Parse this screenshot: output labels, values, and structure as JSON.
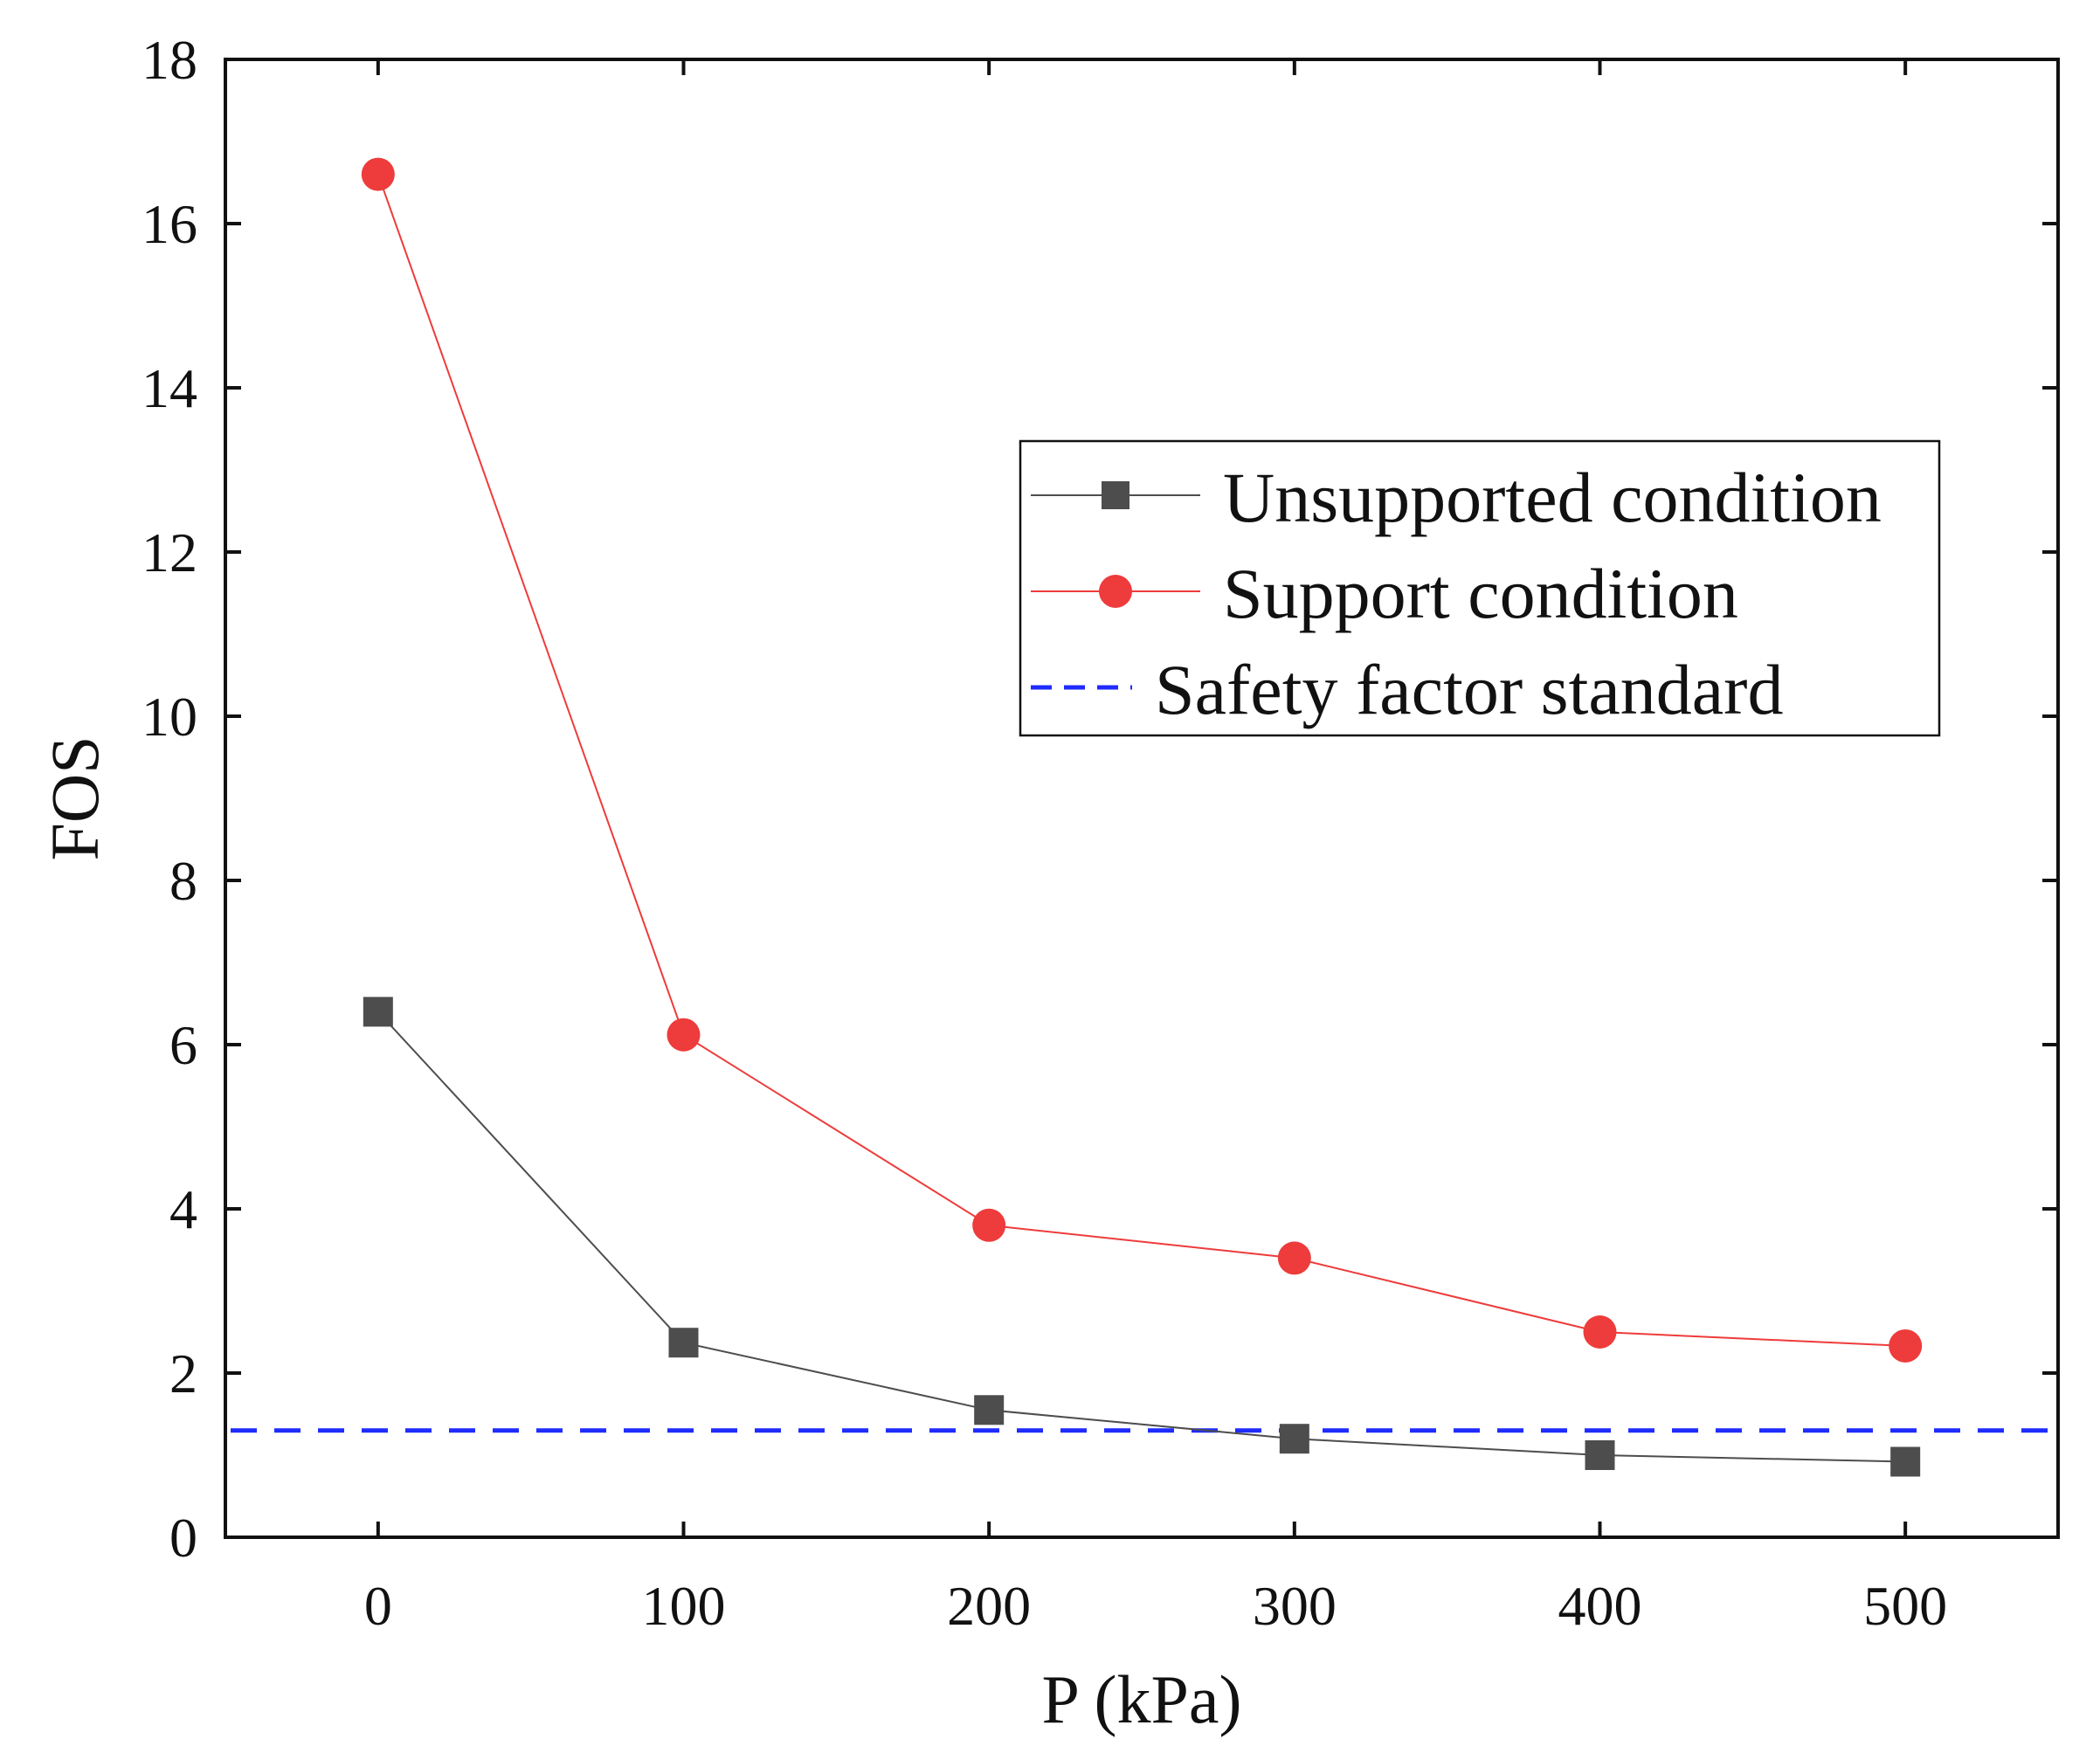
{
  "chart_data": {
    "type": "line",
    "title": "",
    "xlabel": "P (kPa)",
    "ylabel": "FOS",
    "xlim": [
      -50,
      550
    ],
    "ylim": [
      0,
      18
    ],
    "x_ticks": [
      0,
      100,
      200,
      300,
      400,
      500
    ],
    "y_ticks": [
      0,
      2,
      4,
      6,
      8,
      10,
      12,
      14,
      16,
      18
    ],
    "x": [
      0,
      100,
      200,
      300,
      400,
      500
    ],
    "series": [
      {
        "name": "Unsupported condition",
        "marker": "square",
        "color": "#4d4d4d",
        "values": [
          6.4,
          2.37,
          1.55,
          1.2,
          1.0,
          0.92
        ]
      },
      {
        "name": "Support condition",
        "marker": "circle",
        "color": "#ee3b3b",
        "values": [
          16.6,
          6.12,
          3.8,
          3.4,
          2.5,
          2.33
        ]
      }
    ],
    "reference_lines": [
      {
        "name": "Safety factor standard",
        "y": 1.3,
        "style": "dashed",
        "color": "#1f2bff"
      }
    ],
    "legend_position": "top-right",
    "grid": false
  }
}
